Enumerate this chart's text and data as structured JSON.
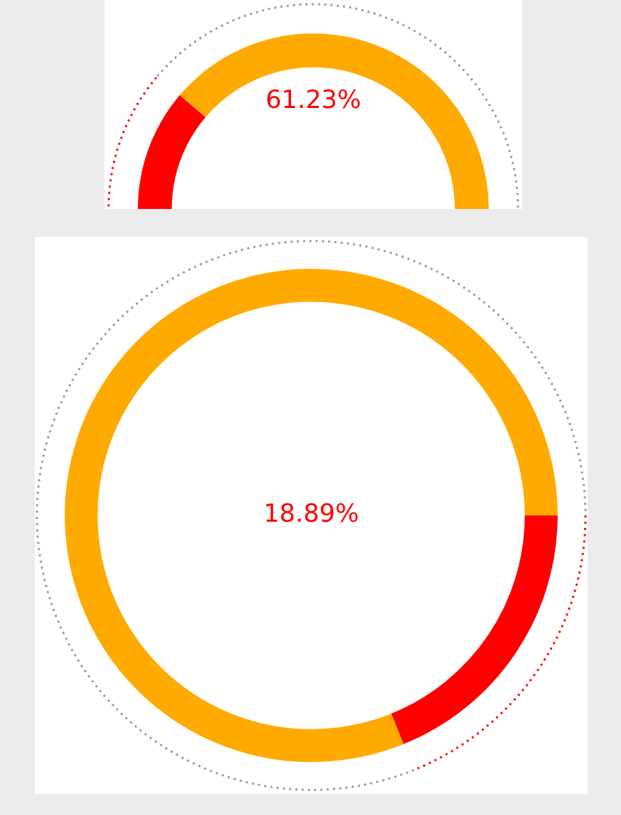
{
  "chart_data": [
    {
      "type": "donut",
      "categories": [
        null,
        null
      ],
      "values": [
        61.23,
        38.77
      ],
      "colors": [
        "#ff0000",
        "#ffaa00"
      ],
      "annotations": [
        "61.23%"
      ],
      "legend": false
    },
    {
      "type": "donut",
      "categories": [
        null,
        null
      ],
      "values": [
        18.89,
        81.11
      ],
      "colors": [
        "#ff0000",
        "#ffaa00"
      ],
      "annotations": [
        "18.89%"
      ],
      "legend": false
    }
  ]
}
